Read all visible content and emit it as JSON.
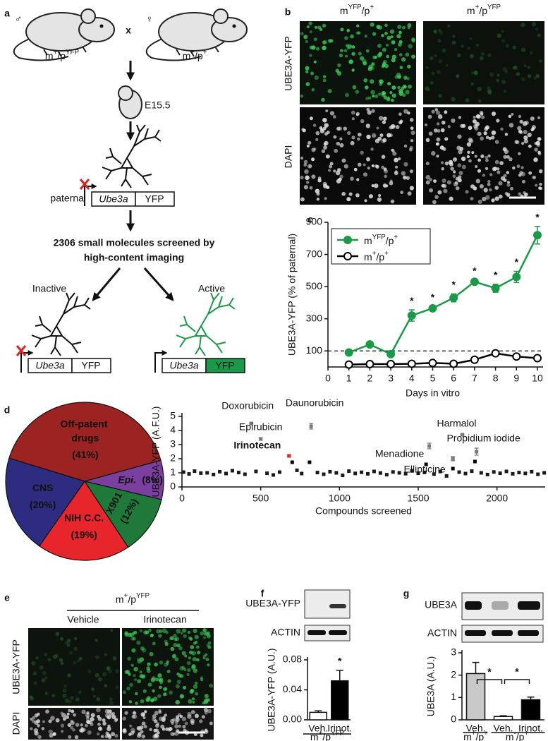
{
  "panels": {
    "a": {
      "letter": "a",
      "male": "♂",
      "cross": "x",
      "female": "♀",
      "father": "m+/pYFP",
      "mother": "m+/p+",
      "stage": "E15.5",
      "allele": "paternal",
      "gene": "Ube3a",
      "reporter": "YFP",
      "screen": [
        "2306 small molecules screened by",
        "high-content imaging"
      ],
      "inactive": "Inactive",
      "active": "Active"
    },
    "b": {
      "letter": "b",
      "columns": [
        "mYFP/p+",
        "m+/pYFP"
      ],
      "rows": [
        "UBE3A-YFP",
        "DAPI"
      ]
    },
    "c": {
      "letter": "c"
    },
    "d": {
      "letter": "d"
    },
    "e": {
      "letter": "e",
      "genotype": "m+/pYFP",
      "columns": [
        "Vehicle",
        "Irinotecan"
      ],
      "rows": [
        "UBE3A-YFP",
        "DAPI"
      ]
    },
    "f": {
      "letter": "f",
      "blots": [
        "UBE3A-YFP",
        "ACTIN"
      ],
      "groups": [
        "m+/pYFP"
      ]
    },
    "g": {
      "letter": "g",
      "blots": [
        "UBE3A",
        "ACTIN"
      ],
      "groups": [
        "m+/p+",
        "m-/p+"
      ]
    }
  },
  "chart_data": [
    {
      "type": "line",
      "y_label": "UBE3A-YFP (% of paternal)",
      "x_label": "Days in vitro",
      "x": [
        1,
        2,
        3,
        4,
        5,
        6,
        7,
        8,
        9,
        10
      ],
      "xlim": [
        0,
        10
      ],
      "xticks": [
        0,
        1,
        2,
        3,
        4,
        5,
        6,
        7,
        8,
        9,
        10
      ],
      "ylim": [
        0,
        900
      ],
      "yticks": [
        100,
        300,
        500,
        700,
        900
      ],
      "reference_line": 100,
      "significance_marker": "*",
      "series": [
        {
          "name": "mYFP/p+",
          "color": "#1a9a48",
          "marker": "filled",
          "values": [
            90,
            140,
            80,
            320,
            365,
            430,
            530,
            490,
            560,
            820
          ],
          "errors": [
            5,
            10,
            5,
            35,
            12,
            25,
            10,
            25,
            35,
            55
          ],
          "significant": [
            false,
            false,
            false,
            true,
            true,
            true,
            true,
            true,
            true,
            true
          ]
        },
        {
          "name": "m+/p+",
          "color": "#000000",
          "marker": "open",
          "values": [
            15,
            18,
            18,
            20,
            25,
            20,
            45,
            85,
            65,
            55
          ],
          "errors": [
            2,
            3,
            3,
            3,
            4,
            3,
            4,
            6,
            4,
            5
          ],
          "significant": [
            false,
            false,
            false,
            false,
            false,
            false,
            false,
            false,
            false,
            false
          ]
        }
      ]
    },
    {
      "type": "pie",
      "categories": [
        "Off-patent drugs",
        "Epi.",
        "X901",
        "NIH C.C.",
        "CNS"
      ],
      "values": [
        41,
        8,
        12,
        19,
        20
      ],
      "value_labels": [
        "(41%)",
        "(8%)",
        "(12%)",
        "(19%)",
        "(20%)"
      ],
      "colors": [
        "#9b2322",
        "#7b3fa0",
        "#1f7a3a",
        "#e8252b",
        "#2d2c80"
      ]
    },
    {
      "type": "scatter",
      "x_label": "Compounds screened",
      "y_label": "UBE3A-YFP (A.F.U.)",
      "xlim": [
        0,
        2306
      ],
      "xticks": [
        0,
        500,
        1000,
        1500,
        2000
      ],
      "ylim": [
        0,
        5
      ],
      "yticks": [
        0,
        1,
        2,
        3,
        4,
        5
      ],
      "series": [
        {
          "color": "#1a1a1a",
          "x": [
            10,
            45,
            80,
            120,
            160,
            200,
            240,
            280,
            320,
            360,
            400,
            470,
            540,
            580,
            620,
            730,
            760,
            860,
            900,
            940,
            980,
            1020,
            1060,
            1100,
            1140,
            1180,
            1220,
            1260,
            1300,
            1340,
            1380,
            1420,
            1460,
            1500,
            1540,
            1600,
            1640,
            1680,
            1760,
            1800,
            1840,
            1900,
            1940,
            1980,
            2020,
            2060,
            2100,
            2140,
            2180,
            2220,
            2260,
            2300
          ],
          "values": [
            1.05,
            0.92,
            1.12,
            0.98,
            1.0,
            0.88,
            1.08,
            0.95,
            1.15,
            1.02,
            0.9,
            1.1,
            0.97,
            0.85,
            1.05,
            1.18,
            0.95,
            1.02,
            0.9,
            1.08,
            1.0,
            0.82,
            1.12,
            0.96,
            1.04,
            0.93,
            1.1,
            0.99,
            0.87,
            1.06,
            1.0,
            0.94,
            1.14,
            0.97,
            1.03,
            0.91,
            1.09,
            0.78,
            1.05,
            0.95,
            1.12,
            1.0,
            0.88,
            1.06,
            0.97,
            1.1,
            0.93,
            1.02,
            0.96,
            1.08,
            0.9,
            1.0
          ]
        },
        {
          "color": "#000000",
          "x": [
            700,
            810,
            1550,
            1720,
            1860
          ],
          "values": [
            1.75,
            1.75,
            1.6,
            1.3,
            1.8
          ]
        }
      ],
      "hits": {
        "labels": [
          "Doxorubicin",
          "Epirubicin",
          "Irinotecan",
          "Daunorubicin",
          "Menadione",
          "Ellipticine",
          "Harmalol",
          "Propidium iodide"
        ],
        "x": [
          440,
          500,
          680,
          820,
          1570,
          1720,
          1780,
          1870
        ],
        "values": [
          4.5,
          3.4,
          2.2,
          4.3,
          2.9,
          2.0,
          3.7,
          2.5
        ],
        "errors": [
          0.05,
          0.1,
          0.08,
          0.2,
          0.2,
          0.15,
          0.05,
          0.25
        ],
        "colors": [
          "#7a7a7a",
          "#7a7a7a",
          "#e0262b",
          "#7a7a7a",
          "#7a7a7a",
          "#7a7a7a",
          "#7a7a7a",
          "#7a7a7a"
        ],
        "emphasis": [
          false,
          false,
          true,
          false,
          false,
          false,
          false,
          false
        ]
      }
    },
    {
      "type": "bar",
      "y_label": "UBE3A-YFP (A.U.)",
      "categories": [
        "Veh.",
        "Irinot."
      ],
      "values": [
        0.01,
        0.052
      ],
      "errors": [
        0.002,
        0.014
      ],
      "colors": [
        "#ffffff",
        "#000000"
      ],
      "ylim": [
        0,
        0.08
      ],
      "yticks": [
        {
          "value": 0,
          "label": "0.00"
        },
        {
          "value": 0.04,
          "label": "0.04"
        },
        {
          "value": 0.08,
          "label": "0.08"
        }
      ],
      "significance_marker": "*",
      "significant": [
        false,
        true
      ]
    },
    {
      "type": "bar",
      "y_label": "UBE3A (A.U.)",
      "categories": [
        "Veh.",
        "Veh.",
        "Irinot."
      ],
      "values": [
        2.07,
        0.15,
        0.9
      ],
      "errors": [
        0.5,
        0.03,
        0.12
      ],
      "colors": [
        "#c8c8c8",
        "#ffffff",
        "#000000"
      ],
      "ylim": [
        0,
        3
      ],
      "yticks": [
        0,
        1,
        2,
        3
      ],
      "comparisons": [
        {
          "pair": [
            0,
            1
          ],
          "label": "*"
        },
        {
          "pair": [
            1,
            2
          ],
          "label": "*"
        }
      ]
    }
  ]
}
